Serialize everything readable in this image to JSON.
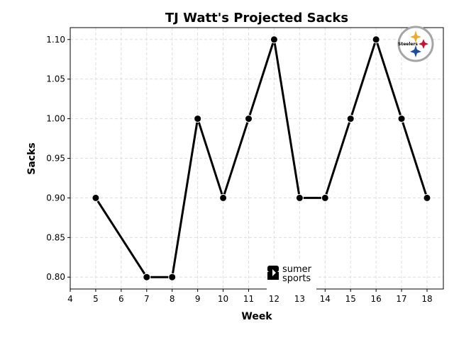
{
  "chart_data": {
    "type": "line",
    "title": "TJ Watt's Projected Sacks",
    "xlabel": "Week",
    "ylabel": "Sacks",
    "x": [
      5,
      7,
      8,
      9,
      10,
      11,
      12,
      13,
      14,
      15,
      16,
      17,
      18
    ],
    "series": [
      {
        "values": [
          0.9,
          0.8,
          0.8,
          1.0,
          0.9,
          1.0,
          1.1,
          0.9,
          0.9,
          1.0,
          1.1,
          1.0,
          0.9
        ]
      }
    ],
    "xlim": [
      4,
      18.64
    ],
    "ylim": [
      0.785,
      1.115
    ],
    "xticks": [
      "4",
      "5",
      "6",
      "7",
      "8",
      "9",
      "10",
      "11",
      "12",
      "13",
      "14",
      "15",
      "16",
      "17",
      "18"
    ],
    "yticks": [
      "0.80",
      "0.85",
      "0.90",
      "0.95",
      "1.00",
      "1.05",
      "1.10"
    ],
    "grid": true,
    "line_color": "#000000",
    "logo_text": "Steelers",
    "watermark": "sumer sports"
  }
}
